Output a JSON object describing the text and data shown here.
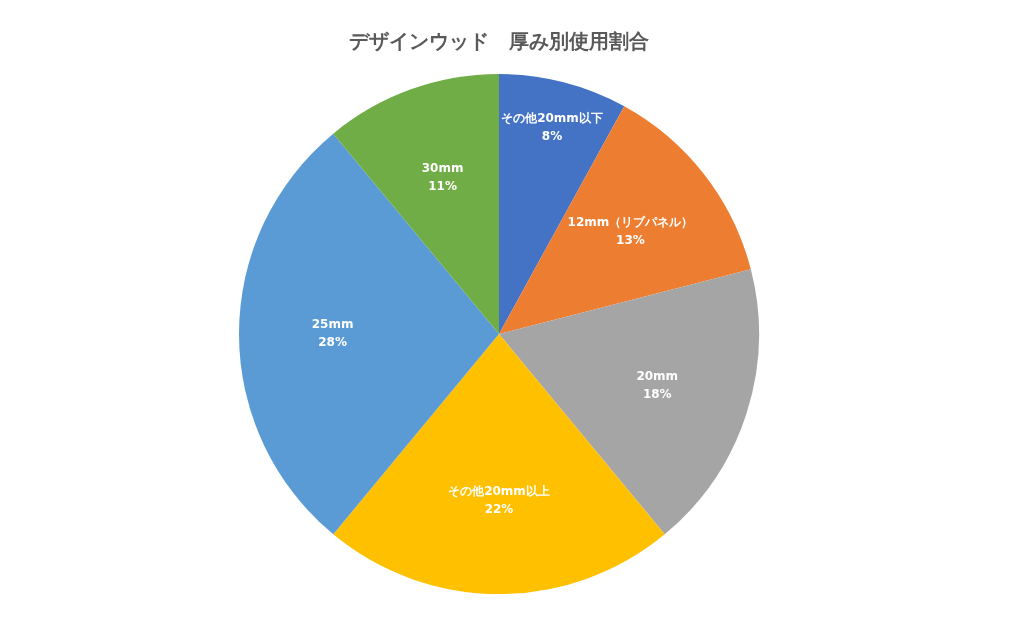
{
  "chart_data": {
    "type": "pie",
    "title": "デザインウッド　厚み別使用割合",
    "categories": [
      "その他20mm以下",
      "12mm（リブパネル）",
      "20mm",
      "その他20mm以上",
      "25mm",
      "30mm"
    ],
    "values": [
      8,
      13,
      18,
      22,
      28,
      11
    ],
    "value_labels": [
      "8%",
      "13%",
      "18%",
      "22%",
      "28%",
      "11%"
    ],
    "colors": [
      "#4472c4",
      "#ed7d31",
      "#a5a5a5",
      "#ffc000",
      "#5b9bd5",
      "#70ad47"
    ],
    "legend": false
  }
}
